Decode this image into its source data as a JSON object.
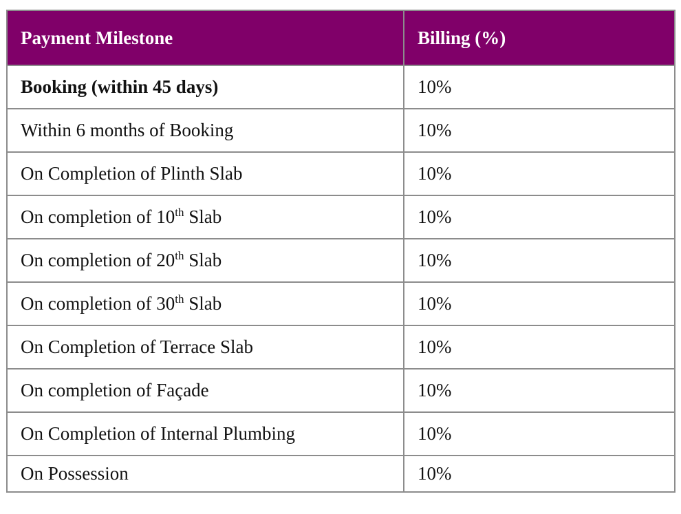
{
  "table": {
    "headers": {
      "milestone": "Payment Milestone",
      "billing": "Billing (%)"
    },
    "rows": [
      {
        "milestone": "Booking (within 45 days)",
        "billing": "10%"
      },
      {
        "milestone": "Within 6 months of Booking",
        "billing": "10%"
      },
      {
        "milestone": "On Completion of Plinth Slab",
        "billing": "10%"
      },
      {
        "milestone_pre": "On completion of 10",
        "milestone_sup": "th",
        "milestone_post": " Slab",
        "billing": "10%"
      },
      {
        "milestone_pre": "On completion of 20",
        "milestone_sup": "th",
        "milestone_post": " Slab",
        "billing": "10%"
      },
      {
        "milestone_pre": "On completion of 30",
        "milestone_sup": "th",
        "milestone_post": " Slab",
        "billing": "10%"
      },
      {
        "milestone": "On Completion of Terrace Slab",
        "billing": "10%"
      },
      {
        "milestone": "On completion of Façade",
        "billing": "10%"
      },
      {
        "milestone": "On Completion of Internal Plumbing",
        "billing": "10%"
      },
      {
        "milestone": "On Possession",
        "billing": "10%"
      }
    ]
  },
  "colors": {
    "header_background": "#800069",
    "header_text": "#ffffff",
    "border": "#8c8c8c"
  }
}
